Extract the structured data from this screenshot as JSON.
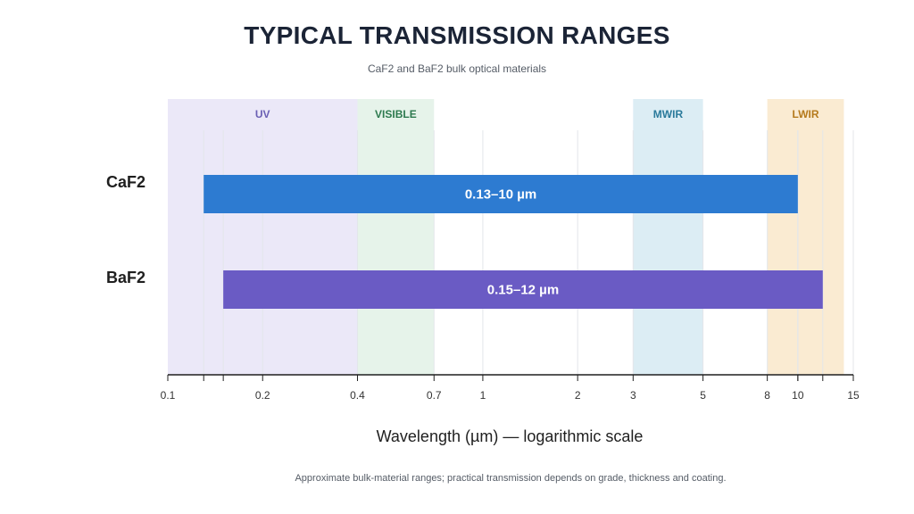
{
  "note": "Approximate bulk-material ranges; practical transmission depends on grade, thickness and coating.",
  "chart_data": {
    "type": "bar",
    "orientation": "horizontal-range",
    "title": "TYPICAL TRANSMISSION RANGES",
    "subtitle": "CaF2 and BaF2 bulk optical materials",
    "xlabel": "Wavelength (µm) — logarithmic scale",
    "xscale": "log",
    "xlim": [
      0.1,
      15
    ],
    "ticks": [
      0.1,
      0.2,
      0.4,
      0.7,
      1,
      2,
      3,
      5,
      8,
      10,
      15
    ],
    "tick_labels": [
      "0.1",
      "0.2",
      "0.4",
      "0.7",
      "1",
      "2",
      "3",
      "5",
      "8",
      "10",
      "15"
    ],
    "grid": true,
    "bands": [
      {
        "label": "UV",
        "start": 0.1,
        "end": 0.4,
        "fill": "#ebe8f8",
        "text_color": "#6a5fb4"
      },
      {
        "label": "VISIBLE",
        "start": 0.4,
        "end": 0.7,
        "fill": "#e6f3ea",
        "text_color": "#2d7a4f"
      },
      {
        "label": "MWIR",
        "start": 3,
        "end": 5,
        "fill": "#dcedf4",
        "text_color": "#2a7a9b"
      },
      {
        "label": "LWIR",
        "start": 8,
        "end": 14,
        "fill": "#faebd2",
        "text_color": "#b57a1c"
      }
    ],
    "series": [
      {
        "category": "CaF2",
        "start": 0.13,
        "end": 10,
        "label": "0.13–10 µm",
        "color": "#2d7bd1"
      },
      {
        "category": "BaF2",
        "start": 0.15,
        "end": 12,
        "label": "0.15–12 µm",
        "color": "#6a5bc4"
      }
    ]
  }
}
